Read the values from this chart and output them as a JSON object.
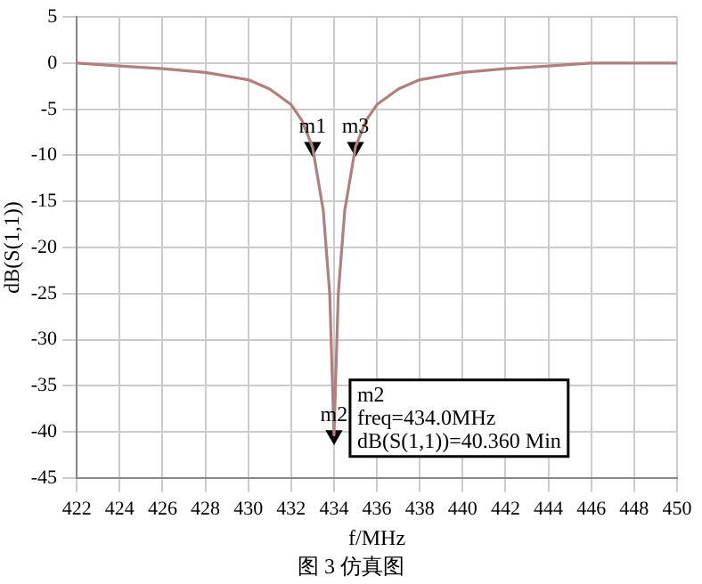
{
  "chart_data": {
    "type": "line",
    "xlabel": "f/MHz",
    "ylabel": "dB(S(1,1))",
    "x": [
      422,
      424,
      426,
      428,
      430,
      431,
      432,
      432.5,
      433,
      433.5,
      433.8,
      434,
      434.2,
      434.5,
      435,
      435.5,
      436,
      437,
      438,
      440,
      442,
      444,
      446,
      448,
      450
    ],
    "series": [
      {
        "color": "#b07f7f",
        "marker": "none",
        "values": [
          0,
          -0.3,
          -0.6,
          -1.0,
          -1.8,
          -2.8,
          -4.5,
          -6.2,
          -9.1,
          -16,
          -25,
          -40.36,
          -25,
          -16,
          -9.1,
          -6.2,
          -4.5,
          -2.8,
          -1.8,
          -1.0,
          -0.6,
          -0.3,
          0,
          0,
          0
        ]
      },
      {
        "type": "scatter",
        "marker": "triangle",
        "color": "#000000",
        "x": [
          433,
          434,
          435
        ],
        "values": [
          -9.1,
          -40.36,
          -9.1
        ]
      }
    ],
    "xlim": [
      422,
      450
    ],
    "xticks": [
      422,
      424,
      426,
      428,
      430,
      432,
      434,
      436,
      438,
      440,
      442,
      444,
      446,
      448,
      450
    ],
    "ylim": [
      -45,
      5
    ],
    "yticks": [
      -45,
      -40,
      -35,
      -30,
      -25,
      -20,
      -15,
      -10,
      -5,
      0,
      5
    ],
    "grid": true,
    "legend": false,
    "line_style": "solid",
    "annotations": [
      {
        "text": "m1",
        "x": 433,
        "y": -9.1
      },
      {
        "text": "m3",
        "x": 435,
        "y": -9.1
      },
      {
        "text": "m2",
        "x": 434,
        "y": -40.36
      },
      "m2\nfreq=434.0MHz\ndB(S(1,1))=40.360 Min",
      "图 3 仿真图"
    ]
  }
}
